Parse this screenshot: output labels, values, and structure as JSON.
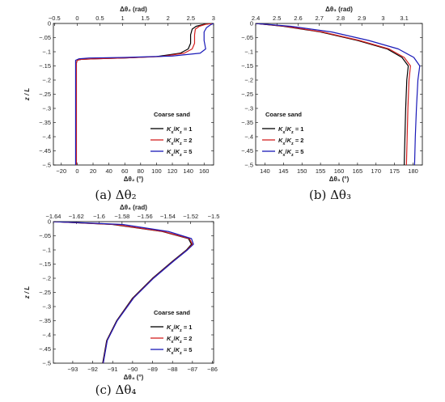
{
  "chart_data": [
    {
      "type": "line",
      "caption": "(a) Δθ₂",
      "title": "Coarse sand",
      "xlabel": "Δθ₂ (°)",
      "xlabel_top": "Δθ₂ (rad)",
      "ylabel": "z / L",
      "xlim": [
        -30,
        172
      ],
      "ylim": [
        -0.5,
        0
      ],
      "x2lim": [
        -0.5236,
        3.002
      ],
      "xticks": [
        -20,
        0,
        20,
        40,
        60,
        80,
        100,
        120,
        140,
        160
      ],
      "x2ticks": [
        -0.5,
        0,
        0.5,
        1,
        1.5,
        2,
        2.5,
        3
      ],
      "yticks": [
        0,
        -0.05,
        -0.1,
        -0.15,
        -0.2,
        -0.25,
        -0.3,
        -0.35,
        -0.4,
        -0.45,
        -0.5
      ],
      "legend_position": "lower-right",
      "series": [
        {
          "name": "Kₓ/Kₓ = 1",
          "label_parts": [
            "K",
            "x",
            "/",
            "K",
            "z",
            " = 1"
          ],
          "color": "#000000",
          "points": [
            [
              170,
              0
            ],
            [
              160,
              -0.003
            ],
            [
              150,
              -0.01
            ],
            [
              145,
              -0.02
            ],
            [
              143,
              -0.04
            ],
            [
              143,
              -0.07
            ],
            [
              140,
              -0.09
            ],
            [
              130,
              -0.105
            ],
            [
              100,
              -0.117
            ],
            [
              60,
              -0.122
            ],
            [
              20,
              -0.125
            ],
            [
              5,
              -0.127
            ],
            [
              0,
              -0.13
            ],
            [
              -1,
              -0.14
            ],
            [
              -1,
              -0.2
            ],
            [
              -1,
              -0.3
            ],
            [
              -1,
              -0.4
            ],
            [
              -1,
              -0.5
            ]
          ]
        },
        {
          "name": "Kₓ/Kₓ = 2",
          "label_parts": [
            "K",
            "x",
            "/",
            "K",
            "z",
            " = 2"
          ],
          "color": "#d42020",
          "points": [
            [
              170,
              0
            ],
            [
              162,
              -0.003
            ],
            [
              154,
              -0.01
            ],
            [
              149,
              -0.02
            ],
            [
              148,
              -0.04
            ],
            [
              148,
              -0.07
            ],
            [
              145,
              -0.09
            ],
            [
              135,
              -0.105
            ],
            [
              105,
              -0.117
            ],
            [
              60,
              -0.122
            ],
            [
              20,
              -0.125
            ],
            [
              5,
              -0.127
            ],
            [
              0,
              -0.13
            ],
            [
              -1,
              -0.14
            ],
            [
              -1,
              -0.2
            ],
            [
              -1,
              -0.3
            ],
            [
              -1,
              -0.4
            ],
            [
              -1,
              -0.5
            ]
          ]
        },
        {
          "name": "Kₓ/Kₓ = 5",
          "label_parts": [
            "K",
            "x",
            "/",
            "K",
            "z",
            " = 5"
          ],
          "color": "#1a1ab8",
          "points": [
            [
              172,
              0
            ],
            [
              168,
              -0.005
            ],
            [
              163,
              -0.015
            ],
            [
              160,
              -0.03
            ],
            [
              160,
              -0.06
            ],
            [
              162,
              -0.09
            ],
            [
              155,
              -0.105
            ],
            [
              120,
              -0.115
            ],
            [
              60,
              -0.12
            ],
            [
              15,
              -0.122
            ],
            [
              2,
              -0.125
            ],
            [
              -2,
              -0.13
            ],
            [
              -2,
              -0.14
            ],
            [
              -2,
              -0.2
            ],
            [
              -2,
              -0.3
            ],
            [
              -2,
              -0.4
            ],
            [
              -2,
              -0.5
            ]
          ]
        }
      ]
    },
    {
      "type": "line",
      "caption": "(b) Δθ₃",
      "title": "Coarse sand",
      "xlabel": "Δθ₃ (°)",
      "xlabel_top": "Δθ₃ (rad)",
      "ylabel": "",
      "xlim": [
        137.5,
        182.5
      ],
      "ylim": [
        -0.5,
        0
      ],
      "x2lim": [
        2.3998,
        3.1852
      ],
      "xticks": [
        140,
        145,
        150,
        155,
        160,
        165,
        170,
        175,
        180
      ],
      "x2ticks": [
        2.4,
        2.5,
        2.6,
        2.7,
        2.8,
        2.9,
        3,
        3.1
      ],
      "yticks": [
        0,
        -0.05,
        -0.1,
        -0.15,
        -0.2,
        -0.25,
        -0.3,
        -0.35,
        -0.4,
        -0.45,
        -0.5
      ],
      "legend_position": "lower-left",
      "series": [
        {
          "name": "Kₓ/Kₓ = 1",
          "label_parts": [
            "K",
            "x",
            "/",
            "K",
            "z",
            " = 1"
          ],
          "color": "#000000",
          "points": [
            [
              137.5,
              0
            ],
            [
              145,
              -0.01
            ],
            [
              155,
              -0.03
            ],
            [
              165,
              -0.06
            ],
            [
              173,
              -0.09
            ],
            [
              177,
              -0.12
            ],
            [
              178.7,
              -0.15
            ],
            [
              178.3,
              -0.2
            ],
            [
              178,
              -0.3
            ],
            [
              177.8,
              -0.4
            ],
            [
              177.6,
              -0.5
            ]
          ]
        },
        {
          "name": "Kₓ/Kₓ = 2",
          "label_parts": [
            "K",
            "x",
            "/",
            "K",
            "z",
            " = 2"
          ],
          "color": "#d42020",
          "points": [
            [
              137.5,
              0
            ],
            [
              145.5,
              -0.01
            ],
            [
              155.5,
              -0.03
            ],
            [
              165.5,
              -0.06
            ],
            [
              173.5,
              -0.09
            ],
            [
              177.6,
              -0.12
            ],
            [
              179.3,
              -0.15
            ],
            [
              178.9,
              -0.2
            ],
            [
              178.6,
              -0.3
            ],
            [
              178.4,
              -0.4
            ],
            [
              178.2,
              -0.5
            ]
          ]
        },
        {
          "name": "Kₓ/Kₓ = 5",
          "label_parts": [
            "K",
            "x",
            "/",
            "K",
            "z",
            " = 5"
          ],
          "color": "#1a1ab8",
          "points": [
            [
              137.5,
              0
            ],
            [
              147,
              -0.01
            ],
            [
              158,
              -0.03
            ],
            [
              168,
              -0.06
            ],
            [
              176,
              -0.09
            ],
            [
              180.2,
              -0.12
            ],
            [
              181.8,
              -0.15
            ],
            [
              181.3,
              -0.2
            ],
            [
              180.9,
              -0.3
            ],
            [
              180.6,
              -0.4
            ],
            [
              180.4,
              -0.5
            ]
          ]
        }
      ]
    },
    {
      "type": "line",
      "caption": "(c) Δθ₄",
      "title": "Coarse sand",
      "xlabel": "Δθ₄ (°)",
      "xlabel_top": "Δθ₄ (rad)",
      "ylabel": "z / L",
      "xlim": [
        -93.97,
        -85.94
      ],
      "ylim": [
        -0.5,
        0
      ],
      "x2lim": [
        -1.64,
        -1.5
      ],
      "xticks": [
        -93,
        -92,
        -91,
        -90,
        -89,
        -88,
        -87,
        -86
      ],
      "x2ticks": [
        -1.64,
        -1.62,
        -1.6,
        -1.58,
        -1.56,
        -1.54,
        -1.52,
        -1.5
      ],
      "yticks": [
        0,
        -0.05,
        -0.1,
        -0.15,
        -0.2,
        -0.25,
        -0.3,
        -0.35,
        -0.4,
        -0.45,
        -0.5
      ],
      "legend_position": "lower-right",
      "series": [
        {
          "name": "Kₓ/Kₓ = 1",
          "label_parts": [
            "K",
            "x",
            "/",
            "K",
            "z",
            " = 1"
          ],
          "color": "#000000",
          "points": [
            [
              -93.97,
              0
            ],
            [
              -91,
              -0.01
            ],
            [
              -88.5,
              -0.035
            ],
            [
              -87.2,
              -0.06
            ],
            [
              -87.05,
              -0.08
            ],
            [
              -87.3,
              -0.1
            ],
            [
              -88.0,
              -0.14
            ],
            [
              -89.0,
              -0.2
            ],
            [
              -90.0,
              -0.27
            ],
            [
              -90.8,
              -0.35
            ],
            [
              -91.3,
              -0.42
            ],
            [
              -91.5,
              -0.5
            ]
          ]
        },
        {
          "name": "Kₓ/Kₓ = 2",
          "label_parts": [
            "K",
            "x",
            "/",
            "K",
            "z",
            " = 2"
          ],
          "color": "#d42020",
          "points": [
            [
              -93.97,
              0
            ],
            [
              -90.9,
              -0.01
            ],
            [
              -88.45,
              -0.035
            ],
            [
              -87.15,
              -0.06
            ],
            [
              -87.0,
              -0.08
            ],
            [
              -87.27,
              -0.1
            ],
            [
              -87.97,
              -0.14
            ],
            [
              -88.97,
              -0.2
            ],
            [
              -89.97,
              -0.27
            ],
            [
              -90.78,
              -0.35
            ],
            [
              -91.28,
              -0.42
            ],
            [
              -91.48,
              -0.5
            ]
          ]
        },
        {
          "name": "Kₓ/Kₓ = 5",
          "label_parts": [
            "K",
            "x",
            "/",
            "K",
            "z",
            " = 5"
          ],
          "color": "#1a1ab8",
          "points": [
            [
              -93.97,
              0
            ],
            [
              -90.5,
              -0.01
            ],
            [
              -88.2,
              -0.035
            ],
            [
              -87.05,
              -0.06
            ],
            [
              -86.95,
              -0.08
            ],
            [
              -87.25,
              -0.1
            ],
            [
              -87.95,
              -0.14
            ],
            [
              -88.95,
              -0.2
            ],
            [
              -89.95,
              -0.27
            ],
            [
              -90.77,
              -0.35
            ],
            [
              -91.27,
              -0.42
            ],
            [
              -91.47,
              -0.5
            ]
          ]
        }
      ]
    }
  ]
}
